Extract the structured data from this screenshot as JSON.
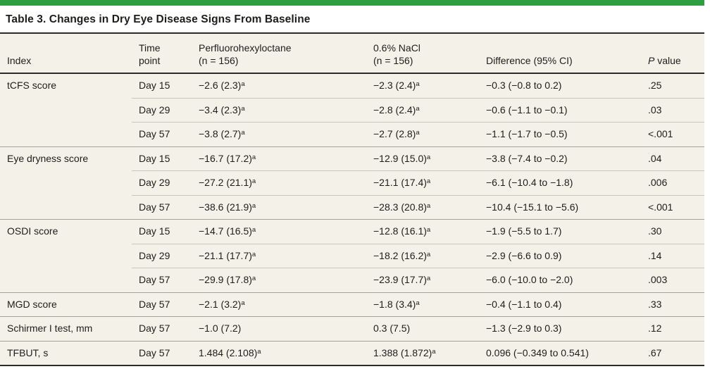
{
  "title": "Table 3. Changes in Dry Eye Disease Signs From Baseline",
  "colors": {
    "accent_green": "#2f9e41",
    "table_background": "#f4f2e8",
    "dark_rule": "#2b2b28",
    "section_rule": "#a5a195",
    "inner_rule": "#c9c6ba",
    "text": "#1d1d1b"
  },
  "table": {
    "columns": [
      {
        "id": "index",
        "lines": [
          "Index"
        ]
      },
      {
        "id": "time",
        "lines": [
          "Time",
          "point"
        ]
      },
      {
        "id": "pfhx",
        "lines": [
          "Perfluorohexyloctane",
          "(n = 156)"
        ]
      },
      {
        "id": "nacl",
        "lines": [
          "0.6% NaCl",
          "(n = 156)"
        ]
      },
      {
        "id": "diff",
        "lines": [
          "Difference (95% CI)"
        ]
      },
      {
        "id": "pvalue",
        "lines": [
          "P value"
        ],
        "italic_lead": true
      }
    ],
    "rows": [
      {
        "index": "tCFS score",
        "time": "Day 15",
        "pfhx": "−2.6 (2.3)^a",
        "nacl": "−2.3 (2.4)^a",
        "diff": "−0.3 (−0.8 to 0.2)",
        "p": ".25",
        "section_start": true
      },
      {
        "index": "",
        "time": "Day 29",
        "pfhx": "−3.4 (2.3)^a",
        "nacl": "−2.8 (2.4)^a",
        "diff": "−0.6 (−1.1 to −0.1)",
        "p": ".03",
        "section_start": false
      },
      {
        "index": "",
        "time": "Day 57",
        "pfhx": "−3.8 (2.7)^a",
        "nacl": "−2.7 (2.8)^a",
        "diff": "−1.1 (−1.7 to −0.5)",
        "p": "<.001",
        "section_start": false
      },
      {
        "index": "Eye dryness score",
        "time": "Day 15",
        "pfhx": "−16.7 (17.2)^a",
        "nacl": "−12.9 (15.0)^a",
        "diff": "−3.8 (−7.4 to −0.2)",
        "p": ".04",
        "section_start": true
      },
      {
        "index": "",
        "time": "Day 29",
        "pfhx": "−27.2 (21.1)^a",
        "nacl": "−21.1 (17.4)^a",
        "diff": "−6.1 (−10.4 to −1.8)",
        "p": ".006",
        "section_start": false
      },
      {
        "index": "",
        "time": "Day 57",
        "pfhx": "−38.6 (21.9)^a",
        "nacl": "−28.3 (20.8)^a",
        "diff": "−10.4 (−15.1 to −5.6)",
        "p": "<.001",
        "section_start": false
      },
      {
        "index": "OSDI score",
        "time": "Day 15",
        "pfhx": "−14.7 (16.5)^a",
        "nacl": "−12.8 (16.1)^a",
        "diff": "−1.9 (−5.5 to 1.7)",
        "p": ".30",
        "section_start": true
      },
      {
        "index": "",
        "time": "Day 29",
        "pfhx": "−21.1 (17.7)^a",
        "nacl": "−18.2 (16.2)^a",
        "diff": "−2.9 (−6.6 to 0.9)",
        "p": ".14",
        "section_start": false
      },
      {
        "index": "",
        "time": "Day 57",
        "pfhx": "−29.9 (17.8)^a",
        "nacl": "−23.9 (17.7)^a",
        "diff": "−6.0 (−10.0 to −2.0)",
        "p": ".003",
        "section_start": false
      },
      {
        "index": "MGD score",
        "time": "Day 57",
        "pfhx": "−2.1 (3.2)^a",
        "nacl": "−1.8 (3.4)^a",
        "diff": "−0.4 (−1.1 to 0.4)",
        "p": ".33",
        "section_start": true
      },
      {
        "index": "Schirmer I test, mm",
        "time": "Day 57",
        "pfhx": "−1.0 (7.2)",
        "nacl": "0.3 (7.5)",
        "diff": "−1.3 (−2.9 to 0.3)",
        "p": ".12",
        "section_start": true
      },
      {
        "index": "TFBUT, s",
        "time": "Day 57",
        "pfhx": "1.484 (2.108)^a",
        "nacl": "1.388 (1.872)^a",
        "diff": "0.096 (−0.349 to 0.541)",
        "p": ".67",
        "section_start": true
      }
    ]
  }
}
